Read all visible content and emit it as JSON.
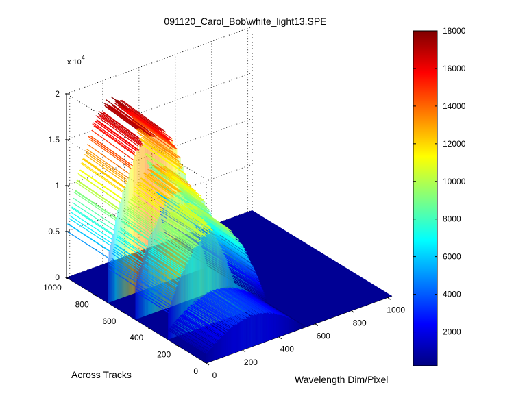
{
  "chart_data": {
    "type": "surface",
    "title": "091120_Carol_Bob\\white_light13.SPE",
    "xlabel": "Wavelength Dim/Pixel",
    "ylabel": "Across Tracks",
    "zlabel": "",
    "z_exponent_label": "x 10",
    "z_exponent_power": "4",
    "xlim": [
      0,
      1024
    ],
    "ylim": [
      0,
      1024
    ],
    "zlim": [
      0,
      20000
    ],
    "x_ticks": [
      {
        "value": 0,
        "label": "0"
      },
      {
        "value": 200,
        "label": "200"
      },
      {
        "value": 400,
        "label": "400"
      },
      {
        "value": 600,
        "label": "600"
      },
      {
        "value": 800,
        "label": "800"
      },
      {
        "value": 1000,
        "label": "1000"
      }
    ],
    "y_ticks": [
      {
        "value": 0,
        "label": "0"
      },
      {
        "value": 200,
        "label": "200"
      },
      {
        "value": 400,
        "label": "400"
      },
      {
        "value": 600,
        "label": "600"
      },
      {
        "value": 800,
        "label": "800"
      },
      {
        "value": 1000,
        "label": "1000"
      }
    ],
    "z_ticks": [
      {
        "value": 0,
        "label": "0"
      },
      {
        "value": 5000,
        "label": "0.5"
      },
      {
        "value": 10000,
        "label": "1"
      },
      {
        "value": 15000,
        "label": "1.5"
      },
      {
        "value": 20000,
        "label": "2"
      }
    ],
    "colormap": "jet",
    "colorbar": {
      "min": 200,
      "max": 18000,
      "ticks": [
        2000,
        4000,
        6000,
        8000,
        10000,
        12000,
        14000,
        16000,
        18000
      ],
      "tick_labels": [
        "2000",
        "4000",
        "6000",
        "8000",
        "10000",
        "12000",
        "14000",
        "16000",
        "18000"
      ]
    },
    "peak_value": 17500,
    "background_value": 200,
    "spectrum_center_x": 250,
    "spectrum_halfwidth_x": 300,
    "track_bands": [
      {
        "y_start": 0,
        "y_end": 280,
        "relative_level": 0.2
      },
      {
        "y_start": 280,
        "y_end": 520,
        "relative_level": 0.6
      },
      {
        "y_start": 520,
        "y_end": 720,
        "relative_level": 0.73
      },
      {
        "y_start": 720,
        "y_end": 1024,
        "relative_level": 1.0
      }
    ],
    "grid": true
  }
}
